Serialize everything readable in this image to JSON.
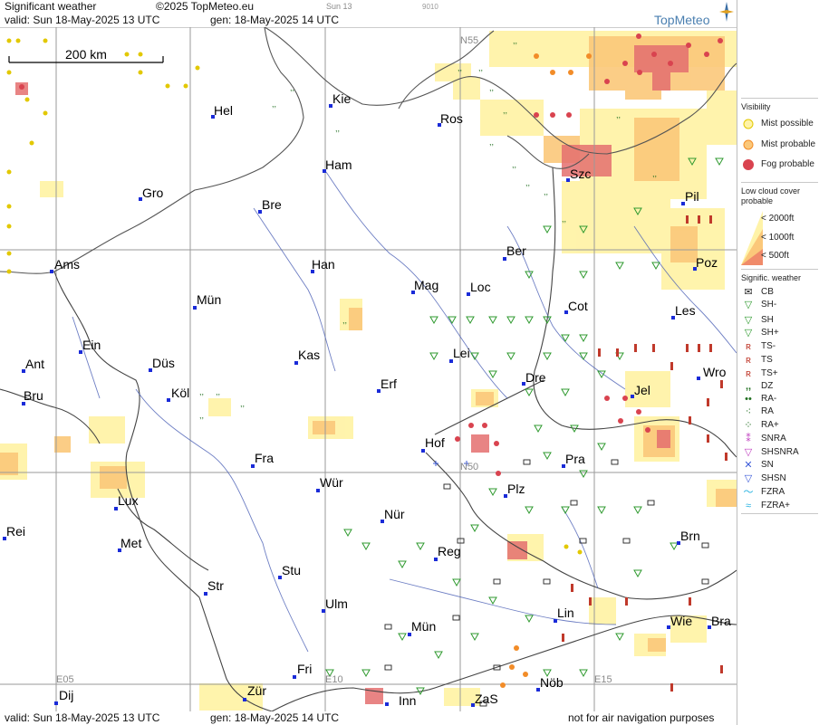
{
  "header": {
    "product": "Significant weather",
    "copyright": "©2025 TopMeteo.eu",
    "day_tab": "Sun 13",
    "code": "9010",
    "valid": "valid:  Sun  18-May-2025  13 UTC",
    "generated": "gen: 18-May-2025 14 UTC"
  },
  "footer": {
    "valid": "valid:  Sun  18-May-2025  13 UTC",
    "generated": "gen: 18-May-2025 14 UTC",
    "notice": "not for air navigation purposes"
  },
  "logo": {
    "text": "TopMeteo"
  },
  "map": {
    "scale_label": "200 km",
    "grid_labels": {
      "n55": "N55",
      "n50": "N50",
      "e05": "E05",
      "e10": "E10",
      "e15": "E15"
    },
    "cities": {
      "hel": "Hel",
      "kie": "Kie",
      "ros": "Ros",
      "ham": "Ham",
      "szc": "Szc",
      "gro": "Gro",
      "bre": "Bre",
      "pil": "Pil",
      "ber": "Ber",
      "ams": "Ams",
      "han": "Han",
      "mag": "Mag",
      "loc": "Loc",
      "poz": "Poz",
      "mun": "Mün",
      "cot": "Cot",
      "les": "Les",
      "ein": "Ein",
      "kas": "Kas",
      "lei": "Lei",
      "ant": "Ant",
      "dus": "Düs",
      "dre": "Dre",
      "wro": "Wro",
      "bru": "Bru",
      "kol": "Köl",
      "erf": "Erf",
      "jel": "Jel",
      "hof": "Hof",
      "fra": "Fra",
      "pra": "Pra",
      "wur": "Wür",
      "lux": "Lux",
      "plz": "Plz",
      "rei": "Rei",
      "nur": "Nür",
      "brn": "Brn",
      "met": "Met",
      "reg": "Reg",
      "stu": "Stu",
      "str": "Str",
      "ulm": "Ulm",
      "lin": "Lin",
      "wie": "Wie",
      "bra": "Bra",
      "mue": "Mün",
      "fri": "Fri",
      "nob": "Nöb",
      "dij": "Dij",
      "zur": "Zür",
      "inn": "Inn",
      "zas": "ZaS"
    },
    "colors": {
      "mist_possible": "#fff3a8",
      "mist_probable": "#fbc87a",
      "fog_probable": "#d9434f",
      "precip_green": "#2f9a2f",
      "thunder_red": "#c0392b",
      "city_blue": "#1a2bd8"
    }
  },
  "legend": {
    "visibility": {
      "title": "Visibility",
      "items": [
        {
          "label": "Mist possible",
          "icon": "mist-possible-icon"
        },
        {
          "label": "Mist probable",
          "icon": "mist-probable-icon"
        },
        {
          "label": "Fog probable",
          "icon": "fog-probable-icon"
        }
      ]
    },
    "low_cloud": {
      "title1": "Low cloud cover",
      "title2": "probable",
      "items": [
        {
          "label": "< 2000ft"
        },
        {
          "label": "< 1000ft"
        },
        {
          "label": "<   500ft"
        }
      ]
    },
    "significant": {
      "title": "Signific. weather",
      "items": [
        {
          "label": "CB",
          "icon": "cb-icon"
        },
        {
          "label": "SH-",
          "icon": "shower-light-icon"
        },
        {
          "label": "SH",
          "icon": "shower-icon"
        },
        {
          "label": "SH+",
          "icon": "shower-heavy-icon"
        },
        {
          "label": "TS-",
          "icon": "thunderstorm-light-icon"
        },
        {
          "label": "TS",
          "icon": "thunderstorm-icon"
        },
        {
          "label": "TS+",
          "icon": "thunderstorm-heavy-icon"
        },
        {
          "label": "DZ",
          "icon": "drizzle-icon"
        },
        {
          "label": "RA-",
          "icon": "rain-light-icon"
        },
        {
          "label": "RA",
          "icon": "rain-icon"
        },
        {
          "label": "RA+",
          "icon": "rain-heavy-icon"
        },
        {
          "label": "SNRA",
          "icon": "snow-rain-icon"
        },
        {
          "label": "SHSNRA",
          "icon": "shower-snow-rain-icon"
        },
        {
          "label": "SN",
          "icon": "snow-icon"
        },
        {
          "label": "SHSN",
          "icon": "shower-snow-icon"
        },
        {
          "label": "FZRA",
          "icon": "freezing-rain-icon"
        },
        {
          "label": "FZRA+",
          "icon": "freezing-rain-heavy-icon"
        }
      ]
    }
  }
}
